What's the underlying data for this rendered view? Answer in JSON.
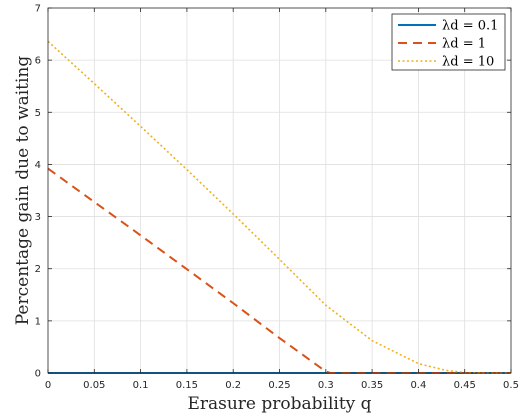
{
  "chart_data": {
    "type": "line",
    "xlabel": "Erasure probability q",
    "ylabel": "Percentage gain due to waiting",
    "xlim": [
      0,
      0.5
    ],
    "ylim": [
      0,
      7
    ],
    "xticks": [
      0,
      0.05,
      0.1,
      0.15,
      0.2,
      0.25,
      0.3,
      0.35,
      0.4,
      0.45,
      0.5
    ],
    "xtick_labels": [
      "0",
      "0.05",
      "0.1",
      "0.15",
      "0.2",
      "0.25",
      "0.3",
      "0.35",
      "0.4",
      "0.45",
      "0.5"
    ],
    "yticks": [
      0,
      1,
      2,
      3,
      4,
      5,
      6,
      7
    ],
    "ytick_labels": [
      "0",
      "1",
      "2",
      "3",
      "4",
      "5",
      "6",
      "7"
    ],
    "grid": true,
    "legend_position": "top-right",
    "series": [
      {
        "name": "λd = 0.1",
        "color": "#0072BD",
        "style": "solid",
        "x": [
          0,
          0.5
        ],
        "y": [
          0,
          0
        ]
      },
      {
        "name": "λd = 1",
        "color": "#D95319",
        "style": "dashed",
        "x": [
          0,
          0.05,
          0.1,
          0.15,
          0.2,
          0.25,
          0.3,
          0.305,
          0.35,
          0.4,
          0.45,
          0.5
        ],
        "y": [
          3.92,
          3.28,
          2.64,
          1.99,
          1.34,
          0.67,
          0.03,
          0,
          0,
          0,
          0,
          0
        ]
      },
      {
        "name": "λd = 10",
        "color": "#EDB120",
        "style": "dotted",
        "x": [
          0,
          0.05,
          0.1,
          0.15,
          0.2,
          0.25,
          0.3,
          0.35,
          0.4,
          0.43,
          0.45,
          0.47,
          0.5
        ],
        "y": [
          6.36,
          5.55,
          4.73,
          3.9,
          3.05,
          2.18,
          1.3,
          0.62,
          0.18,
          0.05,
          0.01,
          0,
          0
        ]
      }
    ]
  }
}
